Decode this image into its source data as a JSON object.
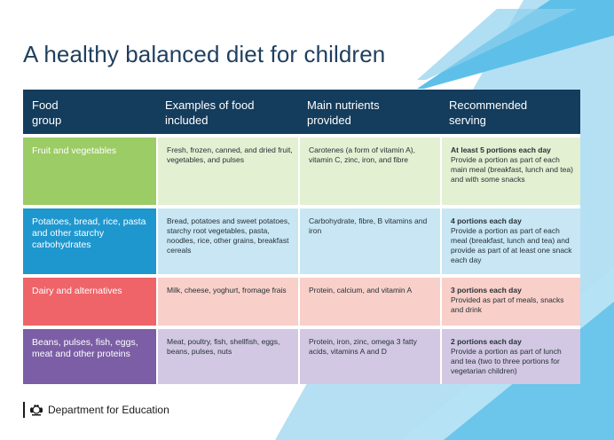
{
  "title": "A healthy balanced diet for children",
  "headers": {
    "food_group": "Food group",
    "examples": "Examples of food included",
    "nutrients": "Main nutrients provided",
    "serving": "Recommended serving"
  },
  "rows": [
    {
      "group": "Fruit and vegetables",
      "examples": "Fresh, frozen, canned, and dried fruit, vegetables, and pulses",
      "nutrients": "Carotenes (a form of vitamin A), vitamin C, zinc, iron, and fibre",
      "serving_title": "At least 5 portions each day",
      "serving_detail": "Provide a portion as part of each main meal (breakfast, lunch and tea) and with some snacks",
      "group_color": "#9ccc65",
      "cell_color": "#e3f0d2"
    },
    {
      "group": "Potatoes, bread, rice, pasta and other starchy carbohydrates",
      "examples": "Bread, potatoes and sweet potatoes, starchy root vegetables, pasta, noodles, rice, other grains, breakfast cereals",
      "nutrients": "Carbohydrate, fibre, B vitamins and iron",
      "serving_title": "4 portions each day",
      "serving_detail": "Provide a portion as part of each meal (breakfast, lunch and tea) and provide as part of at least one snack each day",
      "group_color": "#1e97cf",
      "cell_color": "#c8e6f4"
    },
    {
      "group": "Dairy and alternatives",
      "examples": "Milk, cheese, yoghurt, fromage frais",
      "nutrients": "Protein, calcium, and vitamin A",
      "serving_title": "3 portions each day",
      "serving_detail": "Provided as part of meals, snacks and drink",
      "group_color": "#ef6469",
      "cell_color": "#f9cfc9"
    },
    {
      "group": "Beans, pulses, fish, eggs, meat and other proteins",
      "examples": "Meat, poultry, fish, shellfish, eggs, beans, pulses, nuts",
      "nutrients": "Protein, iron, zinc, omega 3 fatty acids, vitamins A and D",
      "serving_title": "2 portions each day",
      "serving_detail": "Provide a portion as part of lunch and tea (two to three portions for vegetarian children)",
      "group_color": "#7b5ea5",
      "cell_color": "#d3c8e3"
    }
  ],
  "footer": {
    "department": "Department for Education",
    "logo_icon": "royal-crest-icon"
  },
  "colors": {
    "header_bg": "#143c5c",
    "title": "#1f3f5f",
    "bg_blue_light": "#a9daf0",
    "bg_blue_dark": "#4cb4e2"
  }
}
